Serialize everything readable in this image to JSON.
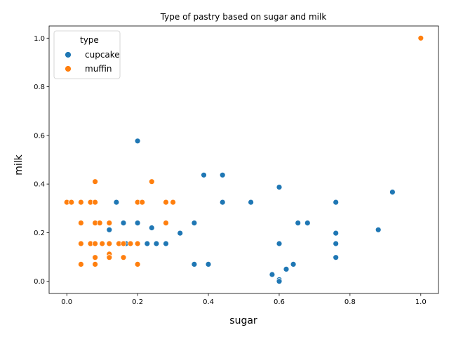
{
  "chart_data": {
    "type": "scatter",
    "title": "Type of pastry based on sugar and milk",
    "xlabel": "sugar",
    "ylabel": "milk",
    "xlim": [
      -0.05,
      1.05
    ],
    "ylim": [
      -0.05,
      1.05
    ],
    "xticks": [
      "0.0",
      "0.2",
      "0.4",
      "0.6",
      "0.8",
      "1.0"
    ],
    "yticks": [
      "0.0",
      "0.2",
      "0.4",
      "0.6",
      "0.8",
      "1.0"
    ],
    "grid": false,
    "legend": {
      "title": "type",
      "placement": "top-left"
    },
    "series": [
      {
        "name": "cupcake",
        "color": "#1f77b4",
        "points": [
          [
            0.2,
            0.577
          ],
          [
            0.387,
            0.437
          ],
          [
            0.44,
            0.437
          ],
          [
            0.6,
            0.387
          ],
          [
            0.92,
            0.367
          ],
          [
            0.14,
            0.325
          ],
          [
            0.44,
            0.325
          ],
          [
            0.52,
            0.325
          ],
          [
            0.76,
            0.325
          ],
          [
            0.16,
            0.24
          ],
          [
            0.2,
            0.24
          ],
          [
            0.36,
            0.24
          ],
          [
            0.653,
            0.24
          ],
          [
            0.68,
            0.24
          ],
          [
            0.12,
            0.212
          ],
          [
            0.24,
            0.22
          ],
          [
            0.88,
            0.212
          ],
          [
            0.32,
            0.198
          ],
          [
            0.76,
            0.198
          ],
          [
            0.15,
            0.155
          ],
          [
            0.167,
            0.155
          ],
          [
            0.227,
            0.155
          ],
          [
            0.253,
            0.155
          ],
          [
            0.28,
            0.155
          ],
          [
            0.6,
            0.155
          ],
          [
            0.76,
            0.155
          ],
          [
            0.76,
            0.098
          ],
          [
            0.36,
            0.07
          ],
          [
            0.4,
            0.07
          ],
          [
            0.64,
            0.07
          ],
          [
            0.62,
            0.05
          ],
          [
            0.58,
            0.028
          ],
          [
            0.6,
            0.007
          ],
          [
            0.6,
            0.0
          ]
        ]
      },
      {
        "name": "muffin",
        "color": "#ff7f0e",
        "points": [
          [
            1.0,
            1.0
          ],
          [
            0.08,
            0.41
          ],
          [
            0.24,
            0.41
          ],
          [
            0.0,
            0.325
          ],
          [
            0.013,
            0.325
          ],
          [
            0.04,
            0.325
          ],
          [
            0.067,
            0.325
          ],
          [
            0.08,
            0.325
          ],
          [
            0.2,
            0.325
          ],
          [
            0.213,
            0.325
          ],
          [
            0.28,
            0.325
          ],
          [
            0.3,
            0.325
          ],
          [
            0.04,
            0.24
          ],
          [
            0.08,
            0.24
          ],
          [
            0.093,
            0.24
          ],
          [
            0.12,
            0.24
          ],
          [
            0.28,
            0.24
          ],
          [
            0.04,
            0.155
          ],
          [
            0.067,
            0.155
          ],
          [
            0.08,
            0.155
          ],
          [
            0.1,
            0.155
          ],
          [
            0.12,
            0.155
          ],
          [
            0.147,
            0.155
          ],
          [
            0.16,
            0.155
          ],
          [
            0.18,
            0.155
          ],
          [
            0.2,
            0.155
          ],
          [
            0.12,
            0.112
          ],
          [
            0.08,
            0.098
          ],
          [
            0.12,
            0.098
          ],
          [
            0.16,
            0.098
          ],
          [
            0.04,
            0.07
          ],
          [
            0.08,
            0.07
          ],
          [
            0.2,
            0.07
          ]
        ]
      }
    ]
  }
}
